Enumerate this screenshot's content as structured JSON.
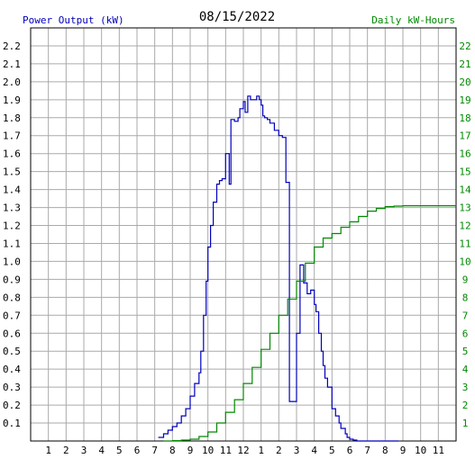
{
  "chart_data": {
    "type": "line",
    "title": "08/15/2022",
    "left_axis_label": "Power Output (kW)",
    "right_axis_label": "Daily kW-Hours",
    "left_ylim": [
      0,
      2.3
    ],
    "right_ylim": [
      0,
      23
    ],
    "left_ticks": [
      "0.1",
      "0.2",
      "0.3",
      "0.4",
      "0.5",
      "0.6",
      "0.7",
      "0.8",
      "0.9",
      "1.0",
      "1.1",
      "1.2",
      "1.3",
      "1.4",
      "1.5",
      "1.6",
      "1.7",
      "1.8",
      "1.9",
      "2.0",
      "2.1",
      "2.2"
    ],
    "right_ticks": [
      "1",
      "2",
      "3",
      "4",
      "5",
      "6",
      "7",
      "8",
      "9",
      "10",
      "11",
      "12",
      "13",
      "14",
      "15",
      "16",
      "17",
      "18",
      "19",
      "20",
      "21",
      "22"
    ],
    "x_ticks": [
      "1",
      "2",
      "3",
      "4",
      "5",
      "6",
      "7",
      "8",
      "9",
      "10",
      "11",
      "12",
      "1",
      "2",
      "3",
      "4",
      "5",
      "6",
      "7",
      "8",
      "9",
      "10",
      "11"
    ],
    "x_range_hours": [
      0,
      24
    ],
    "grid": true,
    "colors": {
      "power": "#0000bb",
      "energy": "#008800",
      "grid": "#aaaaaa",
      "left_label": "#0000bb",
      "right_label": "#008800"
    },
    "series": [
      {
        "axis": "left",
        "hours": [
          7.2,
          7.5,
          7.75,
          8.0,
          8.25,
          8.5,
          8.75,
          9.0,
          9.25,
          9.5,
          9.6,
          9.75,
          9.9,
          10.0,
          10.15,
          10.3,
          10.5,
          10.65,
          10.8,
          11.0,
          11.2,
          11.3,
          11.5,
          11.7,
          11.8,
          12.0,
          12.1,
          12.25,
          12.4,
          12.6,
          12.75,
          12.9,
          13.0,
          13.1,
          13.2,
          13.35,
          13.5,
          13.75,
          14.0,
          14.2,
          14.4,
          14.6,
          14.8,
          15.0,
          15.2,
          15.4,
          15.6,
          15.8,
          16.0,
          16.1,
          16.25,
          16.4,
          16.5,
          16.6,
          16.75,
          17.0,
          17.2,
          17.4,
          17.5,
          17.75,
          17.85,
          18.0,
          18.2,
          18.4,
          18.5,
          18.75,
          19.0,
          19.25,
          19.5,
          19.75,
          20.0,
          20.25,
          20.5,
          20.75
        ],
        "values": [
          0.02,
          0.04,
          0.06,
          0.08,
          0.1,
          0.14,
          0.18,
          0.25,
          0.32,
          0.38,
          0.5,
          0.7,
          0.89,
          1.08,
          1.2,
          1.33,
          1.43,
          1.45,
          1.46,
          1.6,
          1.43,
          1.79,
          1.78,
          1.8,
          1.85,
          1.89,
          1.83,
          1.92,
          1.9,
          1.9,
          1.92,
          1.9,
          1.87,
          1.81,
          1.8,
          1.79,
          1.77,
          1.73,
          1.7,
          1.69,
          1.44,
          0.22,
          0.22,
          0.6,
          0.98,
          0.88,
          0.82,
          0.84,
          0.76,
          0.72,
          0.6,
          0.5,
          0.42,
          0.35,
          0.3,
          0.18,
          0.14,
          0.1,
          0.07,
          0.04,
          0.02,
          0.01,
          0.005,
          0,
          0,
          0,
          0,
          0,
          0,
          0,
          0,
          0,
          0,
          0
        ]
      },
      {
        "axis": "right",
        "hours": [
          7.5,
          8.0,
          8.5,
          9.0,
          9.5,
          10.0,
          10.5,
          11.0,
          11.5,
          12.0,
          12.5,
          13.0,
          13.5,
          14.0,
          14.5,
          15.0,
          15.5,
          16.0,
          16.5,
          17.0,
          17.5,
          18.0,
          18.5,
          19.0,
          19.5,
          20.0,
          20.5,
          21.0,
          21.5,
          22.0,
          22.5,
          23.0,
          23.5,
          24.0
        ],
        "values": [
          0.0,
          0.02,
          0.05,
          0.1,
          0.25,
          0.5,
          1.0,
          1.6,
          2.3,
          3.2,
          4.1,
          5.1,
          6.0,
          7.0,
          7.9,
          8.9,
          9.9,
          10.8,
          11.3,
          11.55,
          11.9,
          12.2,
          12.5,
          12.8,
          12.95,
          13.05,
          13.08,
          13.1,
          13.1,
          13.1,
          13.1,
          13.1,
          13.1,
          13.1
        ]
      }
    ]
  }
}
